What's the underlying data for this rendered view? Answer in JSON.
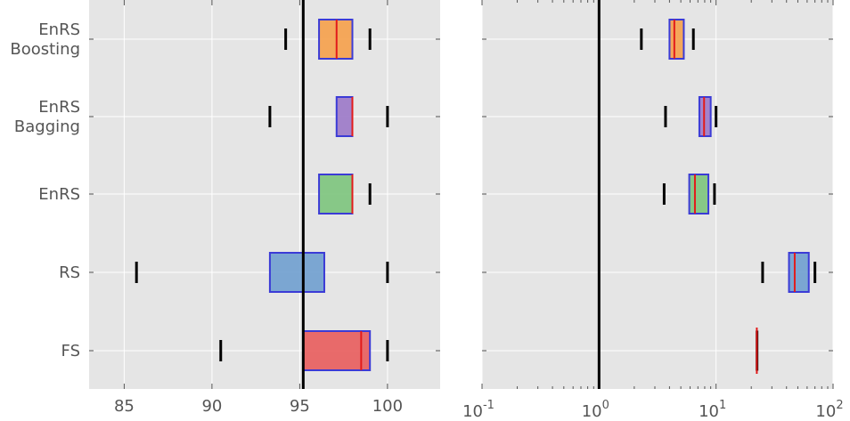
{
  "chart_data": [
    {
      "type": "box",
      "orientation": "horizontal",
      "categories": [
        "EnRS\nBoosting",
        "EnRS\nBagging",
        "EnRS",
        "RS",
        "FS"
      ],
      "xlim": [
        83,
        103
      ],
      "xticks": [
        85,
        90,
        95,
        100
      ],
      "xtick_labels": [
        "85",
        "90",
        "95",
        "100"
      ],
      "reference_line": 95.2,
      "grid": true,
      "boxes": [
        {
          "category": "EnRS\nBoosting",
          "whislo": 94.2,
          "q1": 96.1,
          "med": 97.1,
          "q3": 98.0,
          "whishi": 99.0,
          "color": "#f5a04a"
        },
        {
          "category": "EnRS\nBagging",
          "whislo": 93.3,
          "q1": 97.1,
          "med": 98.0,
          "q3": 98.0,
          "whishi": 100.0,
          "color": "#9b78c8"
        },
        {
          "category": "EnRS",
          "whislo": null,
          "q1": 96.1,
          "med": 98.0,
          "q3": 98.0,
          "whishi": 99.0,
          "color": "#7cc47c"
        },
        {
          "category": "RS",
          "whislo": 85.7,
          "q1": 93.3,
          "med": 95.2,
          "q3": 96.4,
          "whishi": 100.0,
          "color": "#6f9fcf"
        },
        {
          "category": "FS",
          "whislo": 90.5,
          "q1": 95.2,
          "med": 98.5,
          "q3": 99.0,
          "whishi": 100.0,
          "color": "#e85c5c"
        }
      ]
    },
    {
      "type": "box",
      "orientation": "horizontal",
      "x_scale": "log",
      "categories": [
        "EnRS\nBoosting",
        "EnRS\nBagging",
        "EnRS",
        "RS",
        "FS"
      ],
      "xlim": [
        0.1,
        100
      ],
      "xticks": [
        0.1,
        1,
        10,
        100
      ],
      "xtick_labels": [
        {
          "base": "10",
          "exp": "-1"
        },
        {
          "base": "10",
          "exp": "0"
        },
        {
          "base": "10",
          "exp": "1"
        },
        {
          "base": "10",
          "exp": "2"
        }
      ],
      "reference_line": 1,
      "grid": true,
      "boxes": [
        {
          "category": "EnRS\nBoosting",
          "whislo": 2.3,
          "q1": 4.0,
          "med": 4.4,
          "q3": 5.3,
          "whishi": 6.4,
          "color": "#f5a04a"
        },
        {
          "category": "EnRS\nBagging",
          "whislo": 3.7,
          "q1": 7.2,
          "med": 7.9,
          "q3": 9.0,
          "whishi": 10.0,
          "color": "#9b78c8"
        },
        {
          "category": "EnRS",
          "whislo": 3.6,
          "q1": 5.9,
          "med": 6.6,
          "q3": 8.6,
          "whishi": 9.7,
          "color": "#7cc47c"
        },
        {
          "category": "RS",
          "whislo": 25.0,
          "q1": 42.0,
          "med": 47.0,
          "q3": 62.0,
          "whishi": 70.0,
          "color": "#6f9fcf"
        },
        {
          "category": "FS",
          "whislo": null,
          "q1": 22.0,
          "med": 22.3,
          "q3": 22.6,
          "whishi": null,
          "color": "#e85c5c"
        }
      ]
    }
  ]
}
